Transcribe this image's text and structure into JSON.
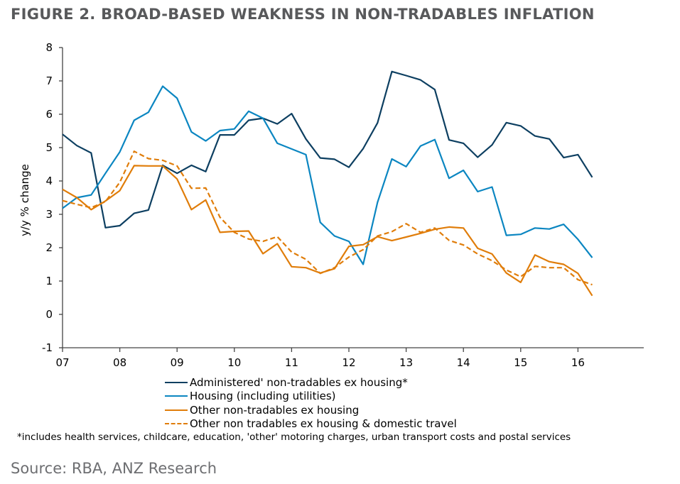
{
  "chart_data": {
    "type": "line",
    "title": "FIGURE 2. BROAD-BASED WEAKNESS IN NON-TRADABLES INFLATION",
    "xlabel": "",
    "ylabel": "y/y % change",
    "ylim": [
      -1,
      8
    ],
    "yticks": [
      "-1",
      "0",
      "1",
      "2",
      "3",
      "4",
      "5",
      "6",
      "7",
      "8"
    ],
    "xticks": [
      "07",
      "08",
      "09",
      "10",
      "11",
      "12",
      "13",
      "14",
      "15",
      "16"
    ],
    "x_start": 2007,
    "x_step": 0.25,
    "grid": false,
    "legend_position": "bottom",
    "series": [
      {
        "name": "Administered' non-tradables ex housing*",
        "color": "#0d3f61",
        "dash": false,
        "values": [
          5.4,
          5.06,
          4.84,
          2.6,
          2.66,
          3.03,
          3.13,
          4.47,
          4.23,
          4.47,
          4.28,
          5.38,
          5.38,
          5.82,
          5.88,
          5.71,
          6.02,
          5.26,
          4.69,
          4.65,
          4.41,
          4.97,
          5.74,
          7.28,
          7.16,
          7.03,
          6.74,
          5.23,
          5.13,
          4.71,
          5.08,
          5.75,
          5.65,
          5.35,
          5.26,
          4.7,
          4.79,
          4.11
        ]
      },
      {
        "name": "Housing (including utilities)",
        "color": "#0b86c1",
        "dash": false,
        "values": [
          3.18,
          3.5,
          3.58,
          4.23,
          4.87,
          5.82,
          6.06,
          6.84,
          6.48,
          5.47,
          5.2,
          5.51,
          5.56,
          6.09,
          5.88,
          5.13,
          4.96,
          4.79,
          2.76,
          2.35,
          2.19,
          1.5,
          3.36,
          4.66,
          4.43,
          5.05,
          5.24,
          4.08,
          4.32,
          3.68,
          3.82,
          2.37,
          2.4,
          2.59,
          2.56,
          2.7,
          2.25,
          1.7
        ]
      },
      {
        "name": "Other non-tradables ex housing",
        "color": "#e07d0a",
        "dash": false,
        "values": [
          3.75,
          3.5,
          3.14,
          3.4,
          3.71,
          4.46,
          4.45,
          4.45,
          4.06,
          3.14,
          3.43,
          2.46,
          2.49,
          2.5,
          1.82,
          2.12,
          1.43,
          1.4,
          1.24,
          1.37,
          2.04,
          2.09,
          2.33,
          2.21,
          2.32,
          2.43,
          2.55,
          2.62,
          2.59,
          1.98,
          1.81,
          1.24,
          0.96,
          1.78,
          1.58,
          1.5,
          1.23,
          0.56
        ]
      },
      {
        "name": "Other non tradables ex housing & domestic travel",
        "color": "#e07d0a",
        "dash": true,
        "values": [
          3.41,
          3.3,
          3.2,
          3.38,
          3.96,
          4.89,
          4.67,
          4.62,
          4.45,
          3.78,
          3.79,
          2.91,
          2.46,
          2.26,
          2.19,
          2.33,
          1.87,
          1.65,
          1.23,
          1.4,
          1.72,
          1.94,
          2.35,
          2.48,
          2.72,
          2.46,
          2.59,
          2.22,
          2.08,
          1.81,
          1.61,
          1.33,
          1.13,
          1.44,
          1.4,
          1.4,
          1.04,
          0.89
        ]
      }
    ],
    "footnote": "*includes health services, childcare, education, 'other' motoring charges, urban transport costs and postal services",
    "source": "Source: RBA, ANZ Research"
  }
}
